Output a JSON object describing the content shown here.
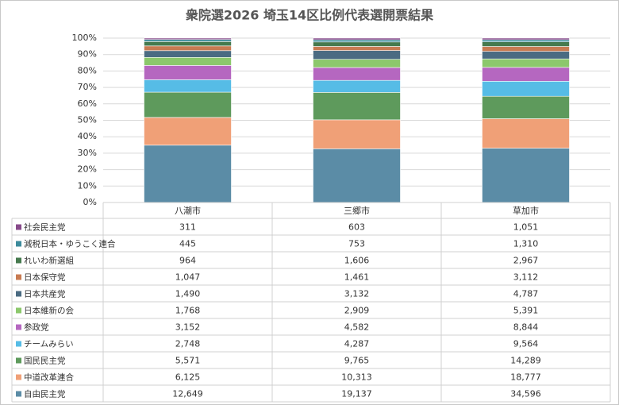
{
  "chart_data": {
    "type": "stacked_percent_bar",
    "title": "衆院選2026 埼玉14区比例代表選開票結果",
    "categories": [
      "八潮市",
      "三郷市",
      "草加市"
    ],
    "series": [
      {
        "name": "自由民主党",
        "color": "#5b8ca6",
        "values": [
          12649,
          19137,
          34596
        ],
        "value_labels": [
          "12,649",
          "19,137",
          "34,596"
        ]
      },
      {
        "name": "中道改革連合",
        "color": "#f0a077",
        "values": [
          6125,
          10313,
          18777
        ],
        "value_labels": [
          "6,125",
          "10,313",
          "18,777"
        ]
      },
      {
        "name": "国民民主党",
        "color": "#5e9a5c",
        "values": [
          5571,
          9765,
          14289
        ],
        "value_labels": [
          "5,571",
          "9,765",
          "14,289"
        ]
      },
      {
        "name": "チームみらい",
        "color": "#56bce6",
        "values": [
          2748,
          4287,
          9564
        ],
        "value_labels": [
          "2,748",
          "4,287",
          "9,564"
        ]
      },
      {
        "name": "参政党",
        "color": "#b567c0",
        "values": [
          3152,
          4582,
          8844
        ],
        "value_labels": [
          "3,152",
          "4,582",
          "8,844"
        ]
      },
      {
        "name": "日本維新の会",
        "color": "#8cc86c",
        "values": [
          1768,
          2909,
          5391
        ],
        "value_labels": [
          "1,768",
          "2,909",
          "5,391"
        ]
      },
      {
        "name": "日本共産党",
        "color": "#4b6b82",
        "values": [
          1490,
          3132,
          4787
        ],
        "value_labels": [
          "1,490",
          "3,132",
          "4,787"
        ]
      },
      {
        "name": "日本保守党",
        "color": "#c87b52",
        "values": [
          1047,
          1461,
          3112
        ],
        "value_labels": [
          "1,047",
          "1,461",
          "3,112"
        ]
      },
      {
        "name": "れいわ新選組",
        "color": "#467a4e",
        "values": [
          964,
          1606,
          2967
        ],
        "value_labels": [
          "964",
          "1,606",
          "2,967"
        ]
      },
      {
        "name": "減税日本・ゆうこく連合",
        "color": "#3d8b9c",
        "values": [
          445,
          753,
          1310
        ],
        "value_labels": [
          "445",
          "753",
          "1,310"
        ]
      },
      {
        "name": "社会民主党",
        "color": "#874a8a",
        "values": [
          311,
          603,
          1051
        ],
        "value_labels": [
          "311",
          "603",
          "1,051"
        ]
      }
    ],
    "ylim": [
      0,
      100
    ],
    "yticks": [
      {
        "value": 0,
        "label": "0%"
      },
      {
        "value": 10,
        "label": "10%"
      },
      {
        "value": 20,
        "label": "20%"
      },
      {
        "value": 30,
        "label": "30%"
      },
      {
        "value": 40,
        "label": "40%"
      },
      {
        "value": 50,
        "label": "50%"
      },
      {
        "value": 60,
        "label": "60%"
      },
      {
        "value": 70,
        "label": "70%"
      },
      {
        "value": 80,
        "label": "80%"
      },
      {
        "value": 90,
        "label": "90%"
      },
      {
        "value": 100,
        "label": "100%"
      }
    ],
    "grid": true,
    "data_table": true
  }
}
